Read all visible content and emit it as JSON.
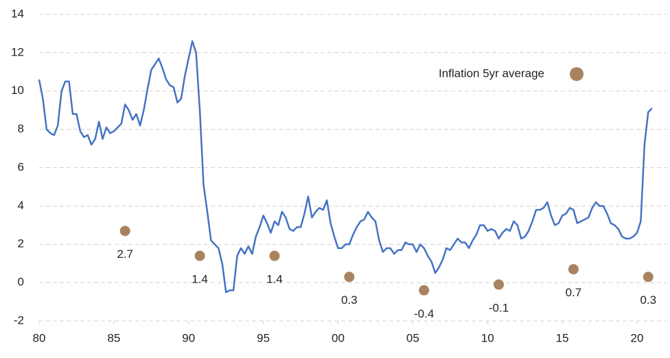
{
  "chart_data": {
    "type": "line",
    "legend": "upper right",
    "grid": true,
    "xlim": [
      1980,
      2022
    ],
    "ylim": [
      -2,
      14
    ],
    "yticks": [
      -2,
      0,
      2,
      4,
      6,
      8,
      10,
      12,
      14
    ],
    "xticks": [
      {
        "value": 1980,
        "label": "80"
      },
      {
        "value": 1985,
        "label": "85"
      },
      {
        "value": 1990,
        "label": "90"
      },
      {
        "value": 1995,
        "label": "95"
      },
      {
        "value": 2000,
        "label": "00"
      },
      {
        "value": 2005,
        "label": "05"
      },
      {
        "value": 2010,
        "label": "10"
      },
      {
        "value": 2015,
        "label": "15"
      },
      {
        "value": 2020,
        "label": "20"
      }
    ],
    "series": [
      {
        "type": "line",
        "color": "#4472c4",
        "x": [
          1980.0,
          1980.25,
          1980.5,
          1980.75,
          1981.0,
          1981.25,
          1981.5,
          1981.75,
          1982.0,
          1982.25,
          1982.5,
          1982.75,
          1983.0,
          1983.25,
          1983.5,
          1983.75,
          1984.0,
          1984.25,
          1984.5,
          1984.75,
          1985.0,
          1985.25,
          1985.5,
          1985.75,
          1986.0,
          1986.25,
          1986.5,
          1986.75,
          1987.0,
          1987.25,
          1987.5,
          1987.75,
          1988.0,
          1988.25,
          1988.5,
          1988.75,
          1989.0,
          1989.25,
          1989.5,
          1989.75,
          1990.0,
          1990.25,
          1990.5,
          1990.75,
          1991.0,
          1991.25,
          1991.5,
          1991.75,
          1992.0,
          1992.25,
          1992.5,
          1992.75,
          1993.0,
          1993.25,
          1993.5,
          1993.75,
          1994.0,
          1994.25,
          1994.5,
          1994.75,
          1995.0,
          1995.25,
          1995.5,
          1995.75,
          1996.0,
          1996.25,
          1996.5,
          1996.75,
          1997.0,
          1997.25,
          1997.5,
          1997.75,
          1998.0,
          1998.25,
          1998.5,
          1998.75,
          1999.0,
          1999.25,
          1999.5,
          1999.75,
          2000.0,
          2000.25,
          2000.5,
          2000.75,
          2001.0,
          2001.25,
          2001.5,
          2001.75,
          2002.0,
          2002.25,
          2002.5,
          2002.75,
          2003.0,
          2003.25,
          2003.5,
          2003.75,
          2004.0,
          2004.25,
          2004.5,
          2004.75,
          2005.0,
          2005.25,
          2005.5,
          2005.75,
          2006.0,
          2006.25,
          2006.5,
          2006.75,
          2007.0,
          2007.25,
          2007.5,
          2007.75,
          2008.0,
          2008.25,
          2008.5,
          2008.75,
          2009.0,
          2009.25,
          2009.5,
          2009.75,
          2010.0,
          2010.25,
          2010.5,
          2010.75,
          2011.0,
          2011.25,
          2011.5,
          2011.75,
          2012.0,
          2012.25,
          2012.5,
          2012.75,
          2013.0,
          2013.25,
          2013.5,
          2013.75,
          2014.0,
          2014.25,
          2014.5,
          2014.75,
          2015.0,
          2015.25,
          2015.5,
          2015.75,
          2016.0,
          2016.25,
          2016.5,
          2016.75,
          2017.0,
          2017.25,
          2017.5,
          2017.75,
          2018.0,
          2018.25,
          2018.5,
          2018.75,
          2019.0,
          2019.25,
          2019.5,
          2019.75,
          2020.0,
          2020.25,
          2020.5,
          2020.75,
          2021.0
        ],
        "values": [
          10.6,
          9.6,
          8.0,
          7.8,
          7.7,
          8.2,
          10.0,
          10.5,
          10.5,
          8.8,
          8.8,
          7.9,
          7.6,
          7.7,
          7.2,
          7.5,
          8.4,
          7.5,
          8.1,
          7.8,
          7.9,
          8.1,
          8.3,
          9.3,
          9.0,
          8.5,
          8.8,
          8.2,
          9.0,
          10.1,
          11.1,
          11.4,
          11.7,
          11.2,
          10.6,
          10.3,
          10.2,
          9.4,
          9.6,
          10.8,
          11.7,
          12.6,
          12.0,
          9.0,
          5.1,
          3.7,
          2.2,
          2.0,
          1.8,
          1.0,
          -0.5,
          -0.4,
          -0.4,
          1.4,
          1.8,
          1.5,
          1.9,
          1.5,
          2.4,
          2.9,
          3.5,
          3.1,
          2.6,
          3.2,
          3.0,
          3.7,
          3.4,
          2.8,
          2.7,
          2.9,
          2.9,
          3.6,
          4.5,
          3.4,
          3.7,
          3.9,
          3.8,
          4.3,
          3.1,
          2.4,
          1.8,
          1.8,
          2.0,
          2.0,
          2.5,
          2.9,
          3.2,
          3.3,
          3.7,
          3.4,
          3.2,
          2.2,
          1.6,
          1.8,
          1.8,
          1.5,
          1.7,
          1.7,
          2.1,
          2.0,
          2.0,
          1.6,
          2.0,
          1.8,
          1.4,
          1.1,
          0.5,
          0.8,
          1.2,
          1.8,
          1.7,
          2.0,
          2.3,
          2.1,
          2.1,
          1.8,
          2.2,
          2.5,
          3.0,
          3.0,
          2.7,
          2.8,
          2.7,
          2.3,
          2.6,
          2.8,
          2.7,
          3.2,
          3.0,
          2.3,
          2.4,
          2.7,
          3.2,
          3.8,
          3.8,
          3.9,
          4.2,
          3.5,
          3.0,
          3.1,
          3.5,
          3.6,
          3.9,
          3.8,
          3.1,
          3.2,
          3.3,
          3.4,
          3.9,
          4.2,
          4.0,
          4.0,
          3.6,
          3.1,
          3.0,
          2.8,
          2.4,
          2.3,
          2.3,
          2.4,
          2.6,
          3.2,
          7.2,
          8.9,
          9.1
        ]
      },
      {
        "type": "scatter",
        "name": "Inflation 5yr average",
        "color": "#a9825f",
        "x": [
          1985.75,
          1990.75,
          1995.75,
          2000.75,
          2005.75,
          2010.75,
          2015.75,
          2020.75
        ],
        "values": [
          2.7,
          1.4,
          1.4,
          0.3,
          -0.4,
          -0.1,
          0.7,
          0.3
        ]
      }
    ]
  }
}
